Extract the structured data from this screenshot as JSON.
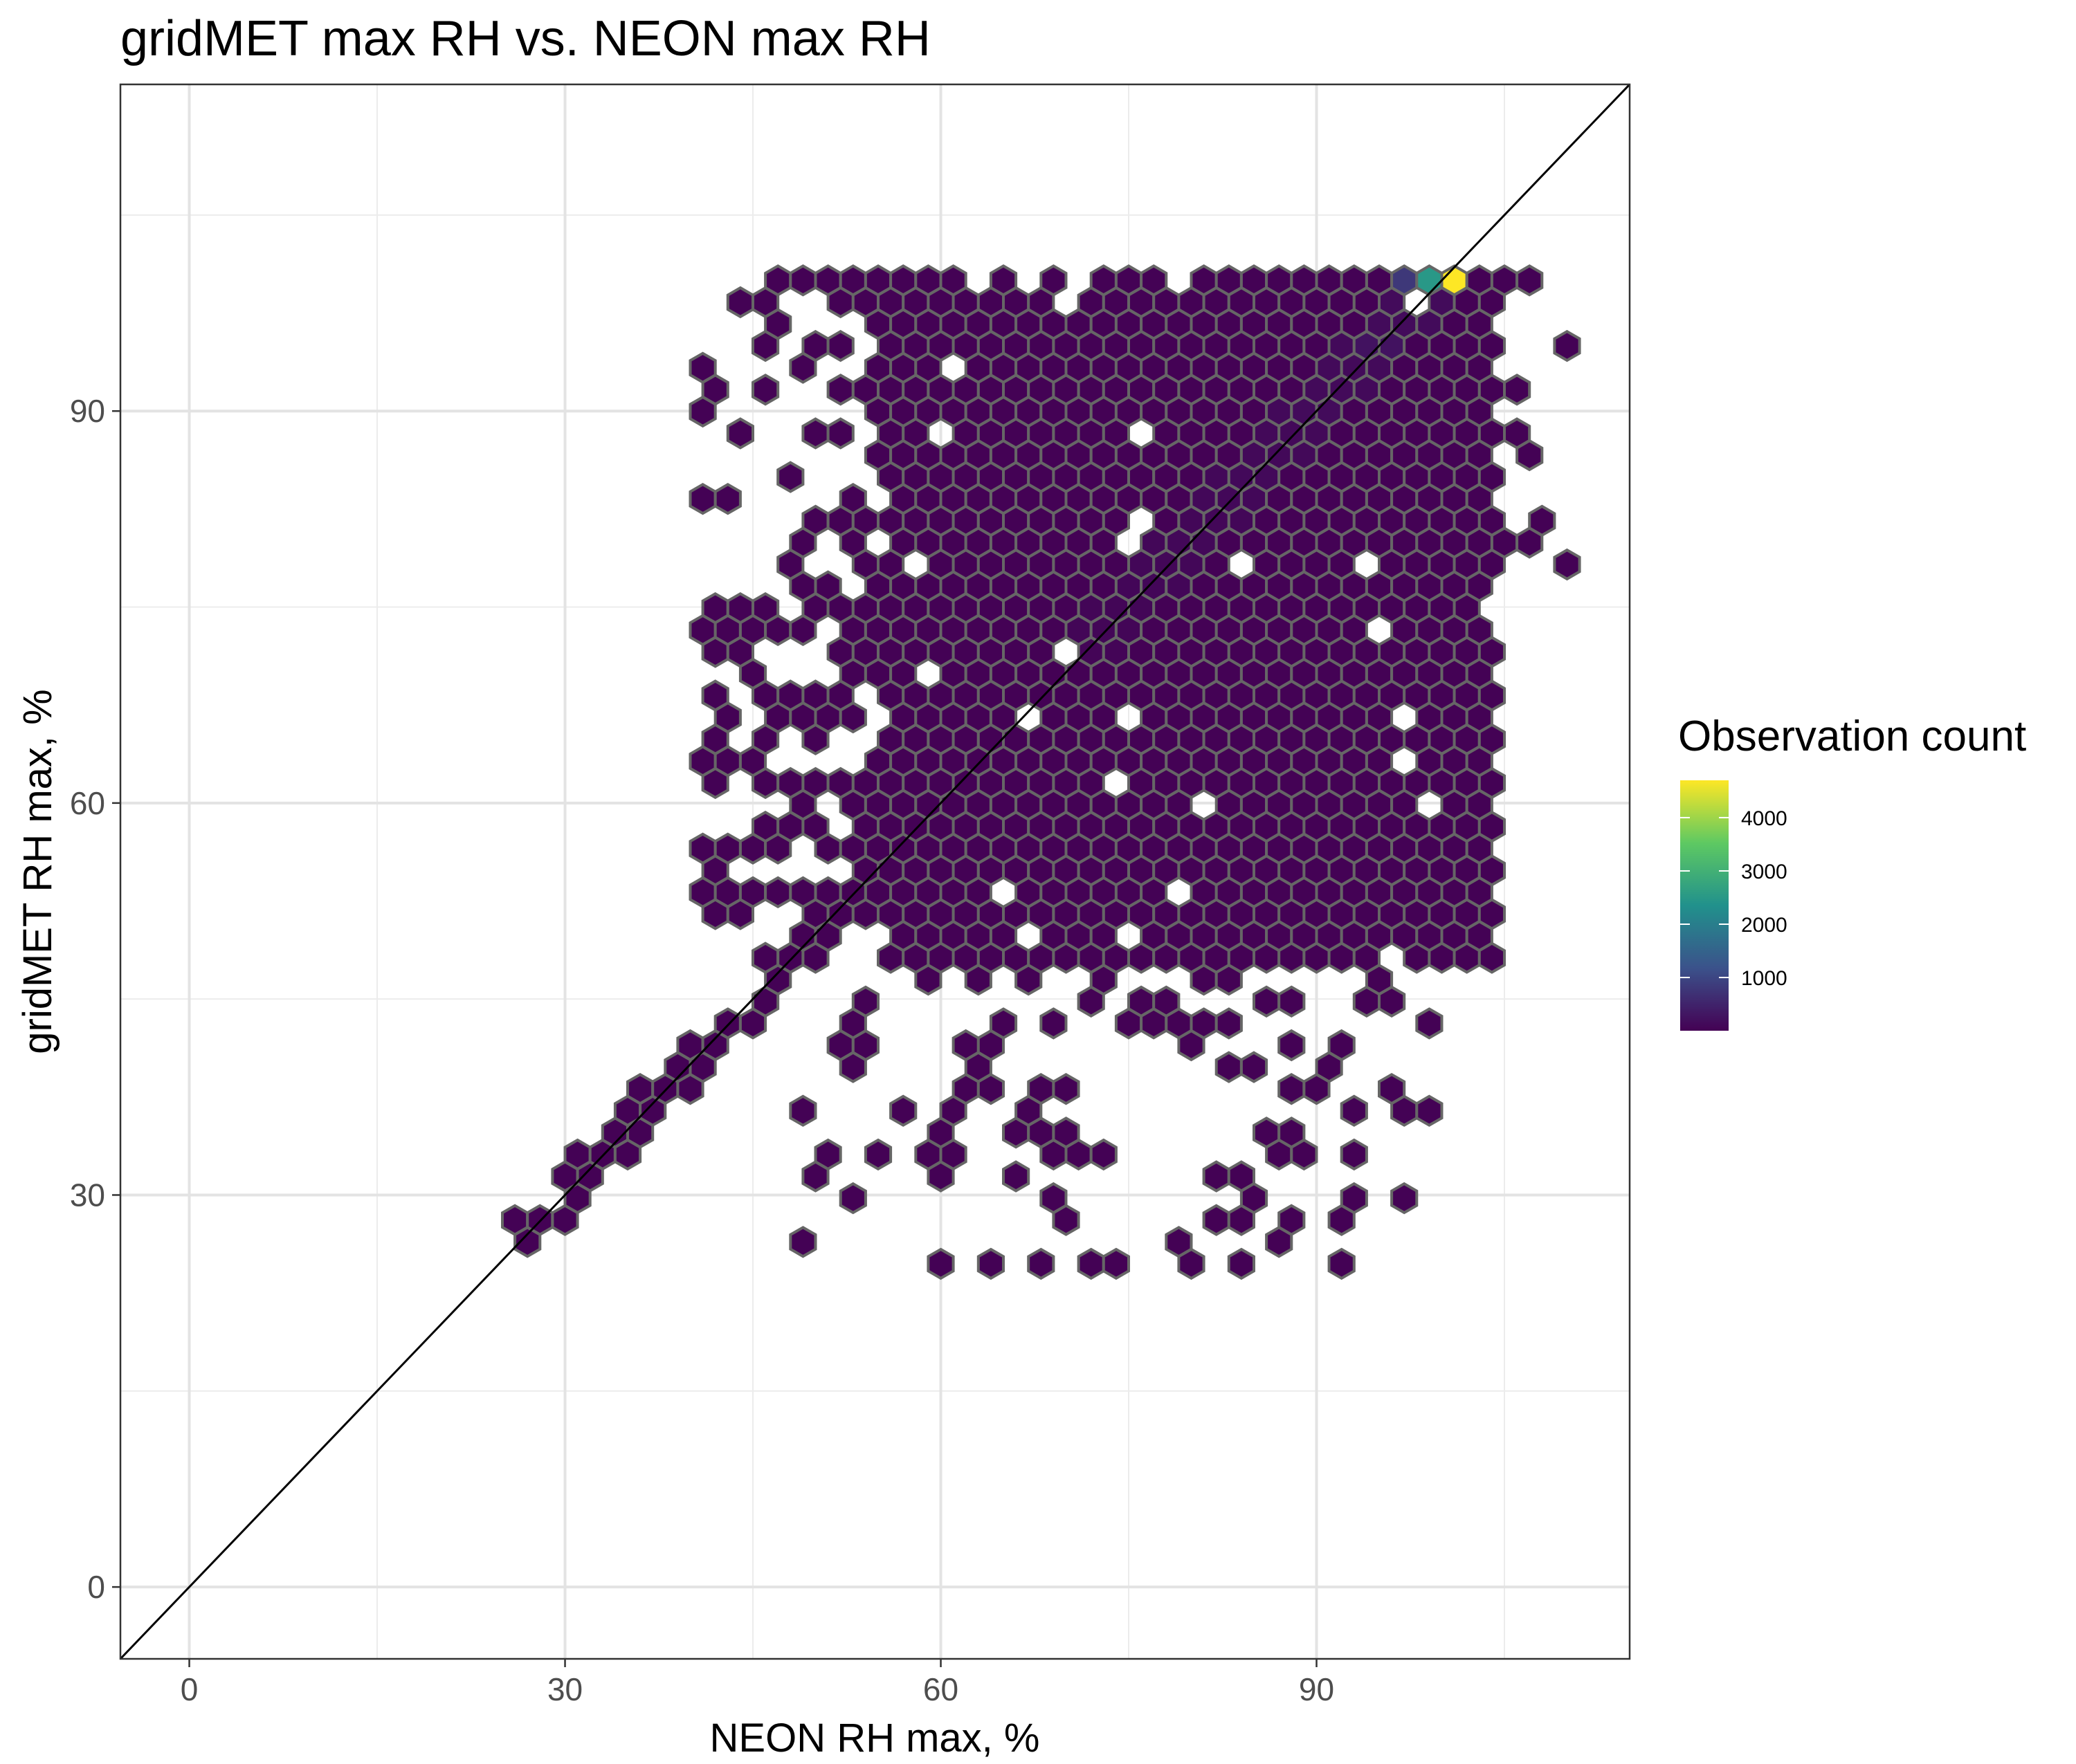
{
  "chart_data": {
    "type": "hexbin",
    "title": "gridMET max RH vs. NEON max RH",
    "xlabel": "NEON RH max, %",
    "ylabel": "gridMET RH max, %",
    "xlim": [
      -5.5,
      115
    ],
    "ylim": [
      -5.5,
      115
    ],
    "x_ticks": [
      0,
      30,
      60,
      90
    ],
    "y_ticks": [
      0,
      30,
      60,
      90
    ],
    "x_tick_labels": [
      "0",
      "30",
      "60",
      "90"
    ],
    "y_tick_labels": [
      "0",
      "30",
      "60",
      "90"
    ],
    "grid": true,
    "reference_line": {
      "type": "identity",
      "slope": 1,
      "intercept": 0
    },
    "hexbin": {
      "x_range": [
        26,
        110
      ],
      "y_range": [
        24,
        100
      ],
      "filled_region": {
        "x_min": 56,
        "x_max": 104,
        "y_min": 48,
        "y_max": 100
      },
      "hex_edge_color": "#666666",
      "palette": [
        "#440154",
        "#3b528b",
        "#21918c",
        "#5ec962",
        "#fde725"
      ],
      "hotspots": [
        {
          "x": 101,
          "y": 100,
          "count": 4700
        },
        {
          "x": 99,
          "y": 100,
          "count": 2500
        },
        {
          "x": 97,
          "y": 100,
          "count": 800
        },
        {
          "x": 98,
          "y": 98,
          "count": 400
        },
        {
          "x": 95,
          "y": 95,
          "count": 250
        },
        {
          "x": 90,
          "y": 90,
          "count": 150
        },
        {
          "x": 85,
          "y": 85,
          "count": 120
        },
        {
          "x": 80,
          "y": 80,
          "count": 100
        }
      ]
    },
    "legend": {
      "title": "Observation count",
      "position": "right",
      "type": "colorbar",
      "range": [
        1,
        4700
      ],
      "ticks": [
        1000,
        2000,
        3000,
        4000
      ],
      "tick_labels": [
        "1000",
        "2000",
        "3000",
        "4000"
      ],
      "colors": [
        "#440154",
        "#3b528b",
        "#21918c",
        "#5ec962",
        "#fde725"
      ]
    }
  }
}
